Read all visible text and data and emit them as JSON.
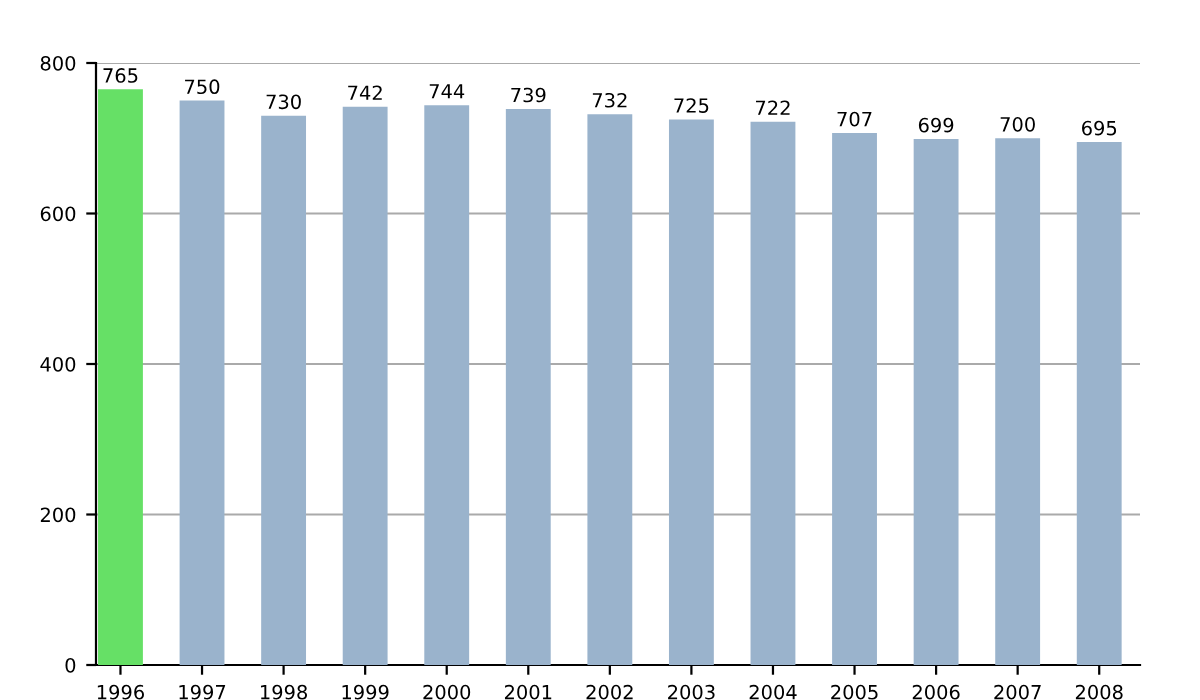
{
  "chart_data": {
    "type": "bar",
    "categories": [
      "1996",
      "1997",
      "1998",
      "1999",
      "2000",
      "2001",
      "2002",
      "2003",
      "2004",
      "2005",
      "2006",
      "2007",
      "2008"
    ],
    "values": [
      765,
      750,
      730,
      742,
      744,
      739,
      732,
      725,
      722,
      707,
      699,
      700,
      695
    ],
    "colors": [
      "#66e066",
      "#9ab3cc",
      "#9ab3cc",
      "#9ab3cc",
      "#9ab3cc",
      "#9ab3cc",
      "#9ab3cc",
      "#9ab3cc",
      "#9ab3cc",
      "#9ab3cc",
      "#9ab3cc",
      "#9ab3cc",
      "#9ab3cc"
    ],
    "ylim": [
      0,
      800
    ],
    "yticks": [
      0,
      200,
      400,
      600,
      800
    ],
    "grid": "y",
    "data_labels": true
  }
}
